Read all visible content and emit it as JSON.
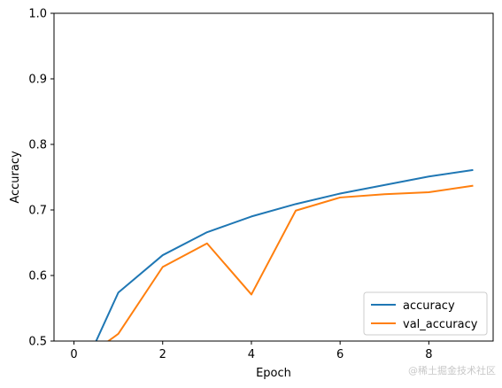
{
  "chart_data": {
    "type": "line",
    "xlabel": "Epoch",
    "ylabel": "Accuracy",
    "xlim": [
      -0.45,
      9.45
    ],
    "ylim": [
      0.5,
      1.0
    ],
    "x_ticks": [
      0,
      2,
      4,
      6,
      8
    ],
    "y_ticks": [
      0.5,
      0.6,
      0.7,
      0.8,
      0.9,
      1.0
    ],
    "x_tick_labels": [
      "0",
      "2",
      "4",
      "6",
      "8"
    ],
    "y_tick_labels": [
      "0.5",
      "0.6",
      "0.7",
      "0.8",
      "0.9",
      "1.0"
    ],
    "grid": false,
    "legend_position": "lower-right",
    "x": [
      0,
      1,
      2,
      3,
      4,
      5,
      6,
      7,
      8,
      9
    ],
    "series": [
      {
        "name": "accuracy",
        "color": "#1f77b4",
        "values": [
          0.426,
          0.574,
          0.631,
          0.666,
          0.69,
          0.709,
          0.725,
          0.738,
          0.751,
          0.761
        ]
      },
      {
        "name": "val_accuracy",
        "color": "#ff7f0e",
        "values": [
          0.462,
          0.511,
          0.613,
          0.649,
          0.571,
          0.699,
          0.719,
          0.724,
          0.727,
          0.737
        ]
      }
    ]
  },
  "watermark": "@稀土掘金技术社区"
}
